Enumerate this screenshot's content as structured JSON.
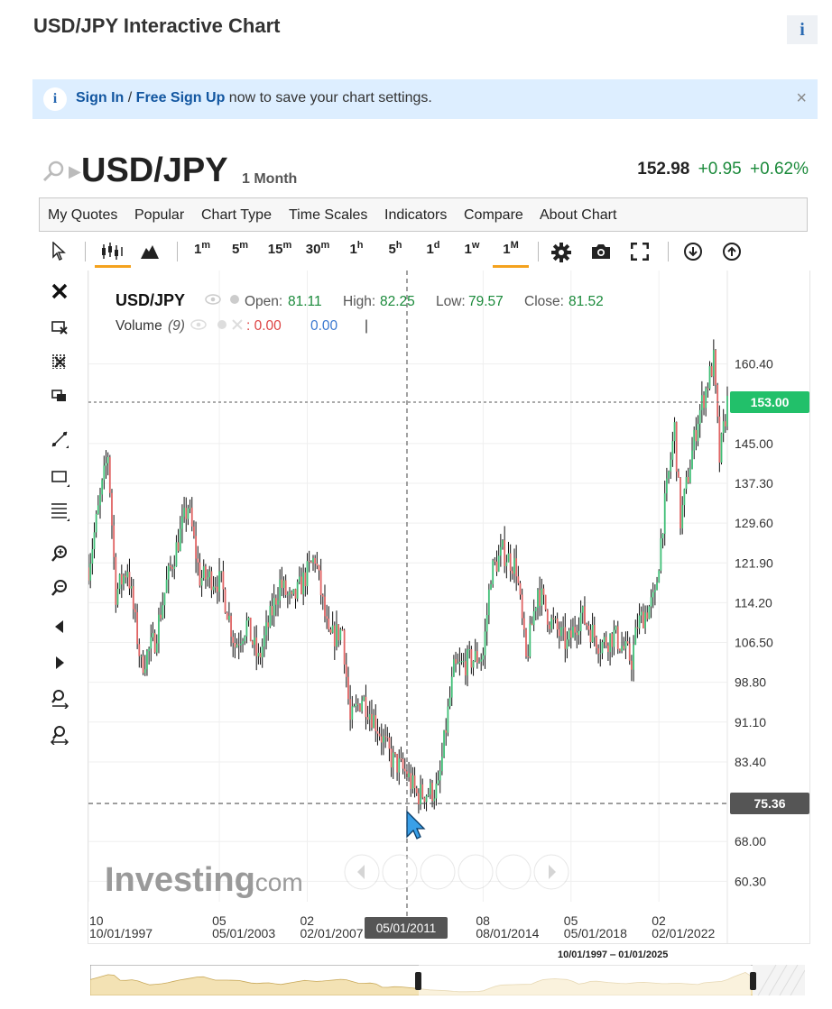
{
  "page": {
    "title": "USD/JPY Interactive Chart",
    "info_icon": "i"
  },
  "notice": {
    "icon": "i",
    "sign_in": "Sign In",
    "separator": " / ",
    "free_sign_up": "Free Sign Up",
    "rest": " now to save your chart settings.",
    "close": "×"
  },
  "symbol": {
    "name": "USD/JPY",
    "interval": "1 Month",
    "last": "152.98",
    "change": "+0.95",
    "change_pct": "+0.62%"
  },
  "menu": [
    "My Quotes",
    "Popular",
    "Chart Type",
    "Time Scales",
    "Indicators",
    "Compare",
    "About Chart"
  ],
  "timeframes": [
    {
      "base": "1",
      "sup": "m"
    },
    {
      "base": "5",
      "sup": "m"
    },
    {
      "base": "15",
      "sup": "m"
    },
    {
      "base": "30",
      "sup": "m"
    },
    {
      "base": "1",
      "sup": "h"
    },
    {
      "base": "5",
      "sup": "h"
    },
    {
      "base": "1",
      "sup": "d"
    },
    {
      "base": "1",
      "sup": "w"
    },
    {
      "base": "1",
      "sup": "M"
    }
  ],
  "active_timeframe": "1M",
  "legend": {
    "symbol": "USD/JPY",
    "open_label": "Open:",
    "open": "81.11",
    "high_label": "High:",
    "high": "82.25",
    "low_label": "Low:",
    "low": "79.57",
    "close_label": "Close:",
    "close": "81.52",
    "volume_label": "Volume",
    "volume_period": "(9)",
    "volume_v1": ": 0.00",
    "volume_v2": "0.00",
    "volume_bar": "|"
  },
  "price_badge": "153.00",
  "crosshair_badge": "75.36",
  "crosshair_date": "05/01/2011",
  "watermark": {
    "brand": "Investing",
    "suffix": ".com"
  },
  "range_label": "10/01/1997 ‒ 01/01/2025",
  "colors": {
    "up": "#3fbe76",
    "down": "#e06464",
    "accent": "#f4a21d",
    "badge_green": "#22c06a",
    "badge_dark": "#555555",
    "link": "#1256a0"
  },
  "chart_data": {
    "type": "candlestick",
    "y_ticks": [
      "160.40",
      "145.00",
      "137.30",
      "129.60",
      "121.90",
      "114.20",
      "106.50",
      "98.80",
      "91.10",
      "83.40",
      "68.00",
      "60.30"
    ],
    "x_ticks": [
      {
        "top": "10",
        "bottom": "10/01/1997"
      },
      {
        "top": "05",
        "bottom": "05/01/2003"
      },
      {
        "top": "02",
        "bottom": "02/01/2007"
      },
      {
        "top": "08",
        "bottom": "08/01/2014"
      },
      {
        "top": "05",
        "bottom": "05/01/2018"
      },
      {
        "top": "02",
        "bottom": "02/01/2022"
      }
    ],
    "ylim": [
      56.0,
      168.0
    ],
    "last_price_line": 153.0,
    "crosshair_price": 75.36,
    "close_path": [
      [
        "1997-10",
        121
      ],
      [
        "1998-08",
        143
      ],
      [
        "1998-12",
        116
      ],
      [
        "1999-06",
        121
      ],
      [
        "2000-01",
        102
      ],
      [
        "2000-08",
        107
      ],
      [
        "2001-02",
        118
      ],
      [
        "2002-01",
        133
      ],
      [
        "2002-07",
        119
      ],
      [
        "2003-01",
        119
      ],
      [
        "2003-06",
        118
      ],
      [
        "2004-01",
        106
      ],
      [
        "2004-07",
        110
      ],
      [
        "2005-01",
        103
      ],
      [
        "2005-12",
        118
      ],
      [
        "2006-06",
        114
      ],
      [
        "2007-06",
        123
      ],
      [
        "2008-01",
        107
      ],
      [
        "2008-08",
        109
      ],
      [
        "2008-12",
        91
      ],
      [
        "2009-06",
        96
      ],
      [
        "2010-01",
        91
      ],
      [
        "2010-09",
        84
      ],
      [
        "2011-05",
        81
      ],
      [
        "2011-10",
        77
      ],
      [
        "2012-09",
        78
      ],
      [
        "2013-02",
        93
      ],
      [
        "2013-05",
        101
      ],
      [
        "2014-01",
        103
      ],
      [
        "2014-08",
        104
      ],
      [
        "2014-12",
        120
      ],
      [
        "2015-06",
        124
      ],
      [
        "2016-01",
        121
      ],
      [
        "2016-06",
        103
      ],
      [
        "2016-12",
        117
      ],
      [
        "2017-06",
        111
      ],
      [
        "2018-03",
        106
      ],
      [
        "2018-10",
        112
      ],
      [
        "2019-08",
        106
      ],
      [
        "2020-03",
        108
      ],
      [
        "2020-12",
        103
      ],
      [
        "2021-03",
        110
      ],
      [
        "2021-12",
        115
      ],
      [
        "2022-04",
        130
      ],
      [
        "2022-10",
        148
      ],
      [
        "2023-01",
        130
      ],
      [
        "2023-10",
        150
      ],
      [
        "2024-06",
        161
      ],
      [
        "2024-09",
        142
      ],
      [
        "2025-01",
        153
      ]
    ]
  }
}
